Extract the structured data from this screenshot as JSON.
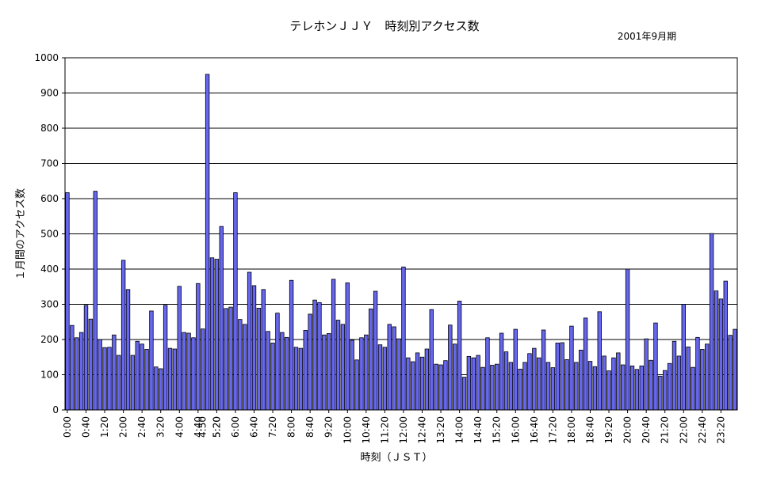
{
  "chart_data": {
    "type": "bar",
    "title": "テレホンＪＪＹ　時刻別アクセス数",
    "subtitle": "2001年9月期",
    "xlabel": "時刻（ＪＳＴ）",
    "ylabel": "１月間のアクセス数",
    "ylim": [
      0,
      1000
    ],
    "yticks": [
      0,
      100,
      200,
      300,
      400,
      500,
      600,
      700,
      800,
      900,
      1000
    ],
    "grid": true,
    "bar_color": "#6666ee",
    "xtick_labels": [
      "0:00",
      "0:40",
      "1:20",
      "2:00",
      "2:40",
      "3:20",
      "4:00",
      "4:40",
      "5:20",
      "6:00",
      "6:40",
      "7:20",
      "8:00",
      "8:40",
      "9:20",
      "10:00",
      "10:40",
      "11:20",
      "12:00",
      "12:40",
      "13:20",
      "14:00",
      "14:40",
      "15:20",
      "16:00",
      "16:40",
      "17:20",
      "18:00",
      "18:40",
      "19:20",
      "20:00",
      "20:40",
      "21:20",
      "22:00",
      "22:40",
      "23:20"
    ],
    "extra_tick_labels": [
      "4:50",
      "5:20"
    ],
    "values": [
      617,
      240,
      205,
      220,
      297,
      258,
      621,
      200,
      177,
      178,
      213,
      155,
      425,
      342,
      155,
      195,
      187,
      172,
      281,
      122,
      117,
      297,
      175,
      173,
      351,
      220,
      218,
      205,
      359,
      230,
      953,
      432,
      428,
      521,
      288,
      292,
      617,
      257,
      243,
      391,
      353,
      289,
      342,
      223,
      190,
      275,
      220,
      206,
      368,
      178,
      175,
      226,
      272,
      312,
      305,
      213,
      217,
      371,
      255,
      243,
      361,
      198,
      142,
      205,
      213,
      287,
      337,
      185,
      178,
      243,
      236,
      202,
      406,
      148,
      137,
      162,
      150,
      173,
      285,
      130,
      128,
      140,
      241,
      187,
      309,
      93,
      152,
      148,
      155,
      121,
      205,
      127,
      130,
      218,
      165,
      135,
      229,
      116,
      135,
      160,
      175,
      148,
      227,
      135,
      120,
      190,
      191,
      143,
      238,
      135,
      170,
      261,
      138,
      123,
      279,
      153,
      111,
      148,
      162,
      128,
      400,
      125,
      115,
      125,
      202,
      141,
      247,
      96,
      112,
      132,
      195,
      153,
      300,
      179,
      121,
      206,
      172,
      187,
      501,
      338,
      315,
      366,
      212,
      229
    ]
  }
}
